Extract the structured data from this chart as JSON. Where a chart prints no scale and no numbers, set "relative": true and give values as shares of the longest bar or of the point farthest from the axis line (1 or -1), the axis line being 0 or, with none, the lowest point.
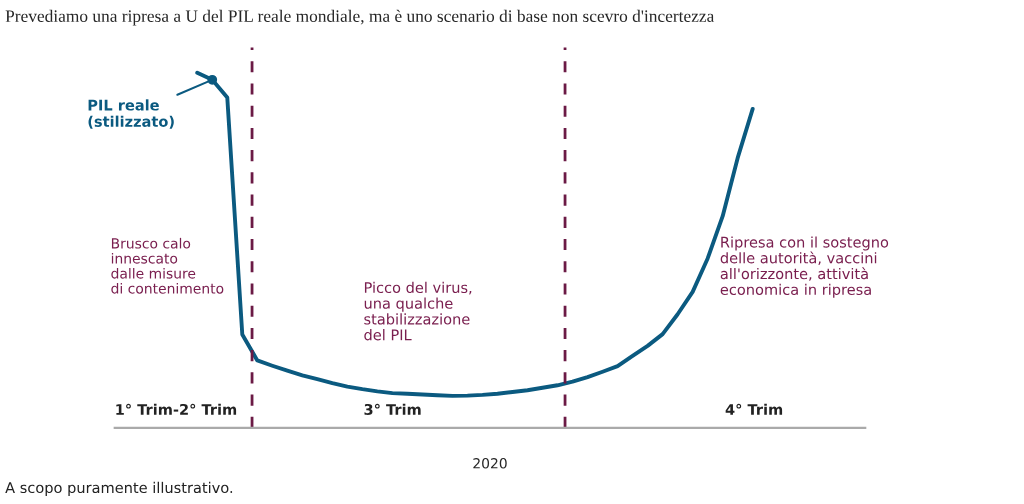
{
  "chart_data": {
    "type": "line",
    "relative": true,
    "title": "Prevediamo una ripresa a U del PIL reale mondiale, ma è uno scenario di base non scevro d'incertezza",
    "xlabel": "2020",
    "categories": [
      null,
      null,
      null,
      null,
      null,
      null,
      null,
      null,
      null,
      null,
      null,
      null,
      null,
      null,
      null,
      null,
      null,
      null,
      null,
      null,
      null,
      null,
      null,
      null,
      null,
      null,
      null,
      null,
      null,
      null,
      null,
      null,
      null,
      null,
      null,
      null,
      null,
      null,
      null,
      null,
      null,
      null,
      null,
      null,
      null,
      null,
      null,
      null,
      null,
      null
    ],
    "series": [
      {
        "name": "PIL reale\n(stilizzato)",
        "color": "#0b5a80",
        "values": [
          null,
          null,
          null,
          null,
          null,
          1,
          0.98,
          0.93,
          0.263,
          0.19,
          0.175,
          0.161,
          0.148,
          0.137,
          0.126,
          0.116,
          0.109,
          0.103,
          0.098,
          0.096,
          0.094,
          0.092,
          0.09,
          0.091,
          0.093,
          0.096,
          0.101,
          0.106,
          0.113,
          0.12,
          0.13,
          0.143,
          0.158,
          0.174,
          0.203,
          0.231,
          0.264,
          0.32,
          0.383,
          0.477,
          0.596,
          0.76,
          0.898,
          null,
          null,
          null,
          null,
          null,
          null,
          null
        ]
      }
    ],
    "annotations": [
      "Brusco calo\ninnescato\ndalle misure\ndi contenimento",
      "Picco del virus,\nuna qualche\nstabilizzazione\ndel PIL",
      "Ripresa con il sostegno\ndelle autorità, vaccini\nall'orizzonte, attività\neconomica in ripresa",
      "1° Trim-2° Trim",
      "3° Trim",
      "4° Trim",
      "A scopo puramente illustrativo."
    ]
  }
}
